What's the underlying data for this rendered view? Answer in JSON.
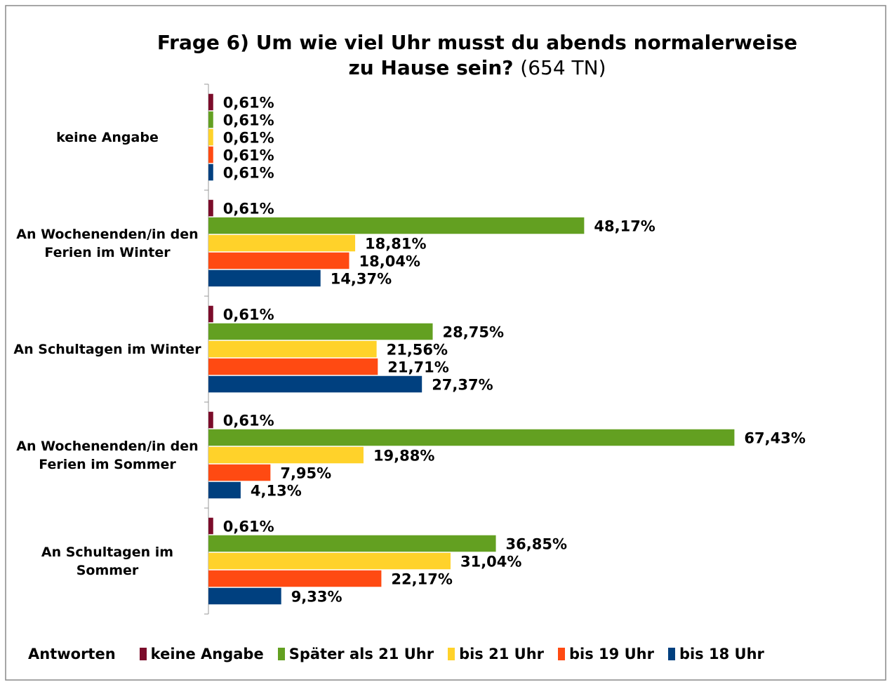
{
  "chart_data": {
    "type": "barh",
    "title": [
      "Frage 6) Um wie viel Uhr musst du abends normalerweise",
      "zu Hause sein?"
    ],
    "title_note": "(654 TN)",
    "categories": [
      "keine Angabe",
      "An Wochenenden/in den Ferien im Winter",
      "An Schultagen im Winter",
      "An Wochenenden/in den Ferien im Sommer",
      "An Schultagen im Sommer"
    ],
    "legend_title": "Antworten",
    "legend": "bottom",
    "xlim": [
      0,
      70
    ],
    "series": [
      {
        "name": "keine Angabe",
        "color": "#7b0c2a",
        "values": [
          0.61,
          0.61,
          0.61,
          0.61,
          0.61
        ],
        "value_labels": [
          "0,61%",
          "0,61%",
          "0,61%",
          "0,61%",
          "0,61%"
        ]
      },
      {
        "name": "Später als 21 Uhr",
        "color": "#63a021",
        "values": [
          0.61,
          48.17,
          28.75,
          67.43,
          36.85
        ],
        "value_labels": [
          "0,61%",
          "48,17%",
          "28,75%",
          "67,43%",
          "36,85%"
        ]
      },
      {
        "name": "bis 21 Uhr",
        "color": "#ffd22a",
        "values": [
          0.61,
          18.81,
          21.56,
          19.88,
          31.04
        ],
        "value_labels": [
          "0,61%",
          "18,81%",
          "21,56%",
          "19,88%",
          "31,04%"
        ]
      },
      {
        "name": "bis 19 Uhr",
        "color": "#ff4a12",
        "values": [
          0.61,
          18.04,
          21.71,
          7.95,
          22.17
        ],
        "value_labels": [
          "0,61%",
          "18,04%",
          "21,71%",
          "7,95%",
          "22,17%"
        ]
      },
      {
        "name": "bis 18 Uhr",
        "color": "#00407f",
        "values": [
          0.61,
          14.37,
          27.37,
          4.13,
          9.33
        ],
        "value_labels": [
          "0,61%",
          "14,37%",
          "27,37%",
          "4,13%",
          "9,33%"
        ]
      }
    ]
  }
}
